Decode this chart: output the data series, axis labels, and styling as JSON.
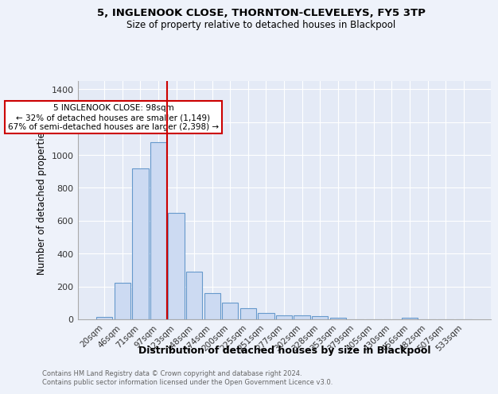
{
  "title1": "5, INGLENOOK CLOSE, THORNTON-CLEVELEYS, FY5 3TP",
  "title2": "Size of property relative to detached houses in Blackpool",
  "xlabel": "Distribution of detached houses by size in Blackpool",
  "ylabel": "Number of detached properties",
  "footnote1": "Contains HM Land Registry data © Crown copyright and database right 2024.",
  "footnote2": "Contains public sector information licensed under the Open Government Licence v3.0.",
  "bar_labels": [
    "20sqm",
    "46sqm",
    "71sqm",
    "97sqm",
    "123sqm",
    "148sqm",
    "174sqm",
    "200sqm",
    "225sqm",
    "251sqm",
    "277sqm",
    "302sqm",
    "328sqm",
    "353sqm",
    "379sqm",
    "405sqm",
    "430sqm",
    "456sqm",
    "482sqm",
    "507sqm",
    "533sqm"
  ],
  "bar_values": [
    15,
    222,
    916,
    1080,
    648,
    290,
    158,
    103,
    70,
    38,
    25,
    22,
    18,
    12,
    0,
    0,
    0,
    8,
    0,
    0,
    0
  ],
  "bar_color": "#ccdaf2",
  "bar_edge_color": "#6699cc",
  "vline_x": 3.5,
  "vline_color": "#cc0000",
  "annotation_text": "5 INGLENOOK CLOSE: 98sqm\n← 32% of detached houses are smaller (1,149)\n67% of semi-detached houses are larger (2,398) →",
  "annotation_box_color": "#ffffff",
  "annotation_box_edge": "#cc0000",
  "ylim": [
    0,
    1450
  ],
  "yticks": [
    0,
    200,
    400,
    600,
    800,
    1000,
    1200,
    1400
  ],
  "background_color": "#eef2fa",
  "axes_bg_color": "#e4eaf6"
}
